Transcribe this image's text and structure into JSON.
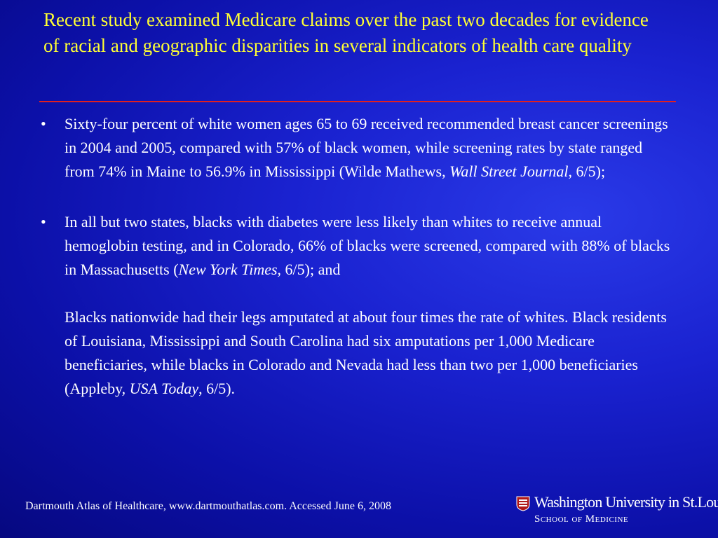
{
  "slide": {
    "title": "Recent study examined Medicare claims over the past two decades for evidence of racial and geographic disparities in several indicators of health care quality",
    "bullets": [
      {
        "text": "Sixty-four percent of white women ages 65 to 69 received recommended breast cancer screenings in 2004 and 2005, compared with 57% of black women, while screening rates by state ranged from 74% in Maine to 56.9% in Mississippi (Wilde Mathews, ",
        "source": "Wall Street Journal",
        "tail": ", 6/5);"
      },
      {
        "text": "In all but two states, blacks with diabetes were less likely than whites to receive annual hemoglobin testing, and in Colorado, 66% of blacks were screened, compared with 88% of blacks in Massachusetts (",
        "source": "New York Times",
        "tail": ", 6/5); and"
      }
    ],
    "paragraph": {
      "text": "Blacks nationwide had their legs amputated at about four times the rate of whites. Black residents of Louisiana, Mississippi and South Carolina had six amputations per 1,000 Medicare beneficiaries, while blacks in Colorado and Nevada had less than two per 1,000 beneficiaries (Appleby, ",
      "source": "USA Today",
      "tail": ", 6/5)."
    },
    "bullet_glyph": "•"
  },
  "footer": {
    "citation": "Dartmouth  Atlas of  Healthcare, www.dartmouthatlas.com.  Accessed  June 6, 2008",
    "logo_name": "Washington University in St.Louis",
    "logo_sub": "School of Medicine"
  },
  "colors": {
    "title": "#ffff33",
    "rule": "#e02020",
    "background": "#1a22d0"
  }
}
